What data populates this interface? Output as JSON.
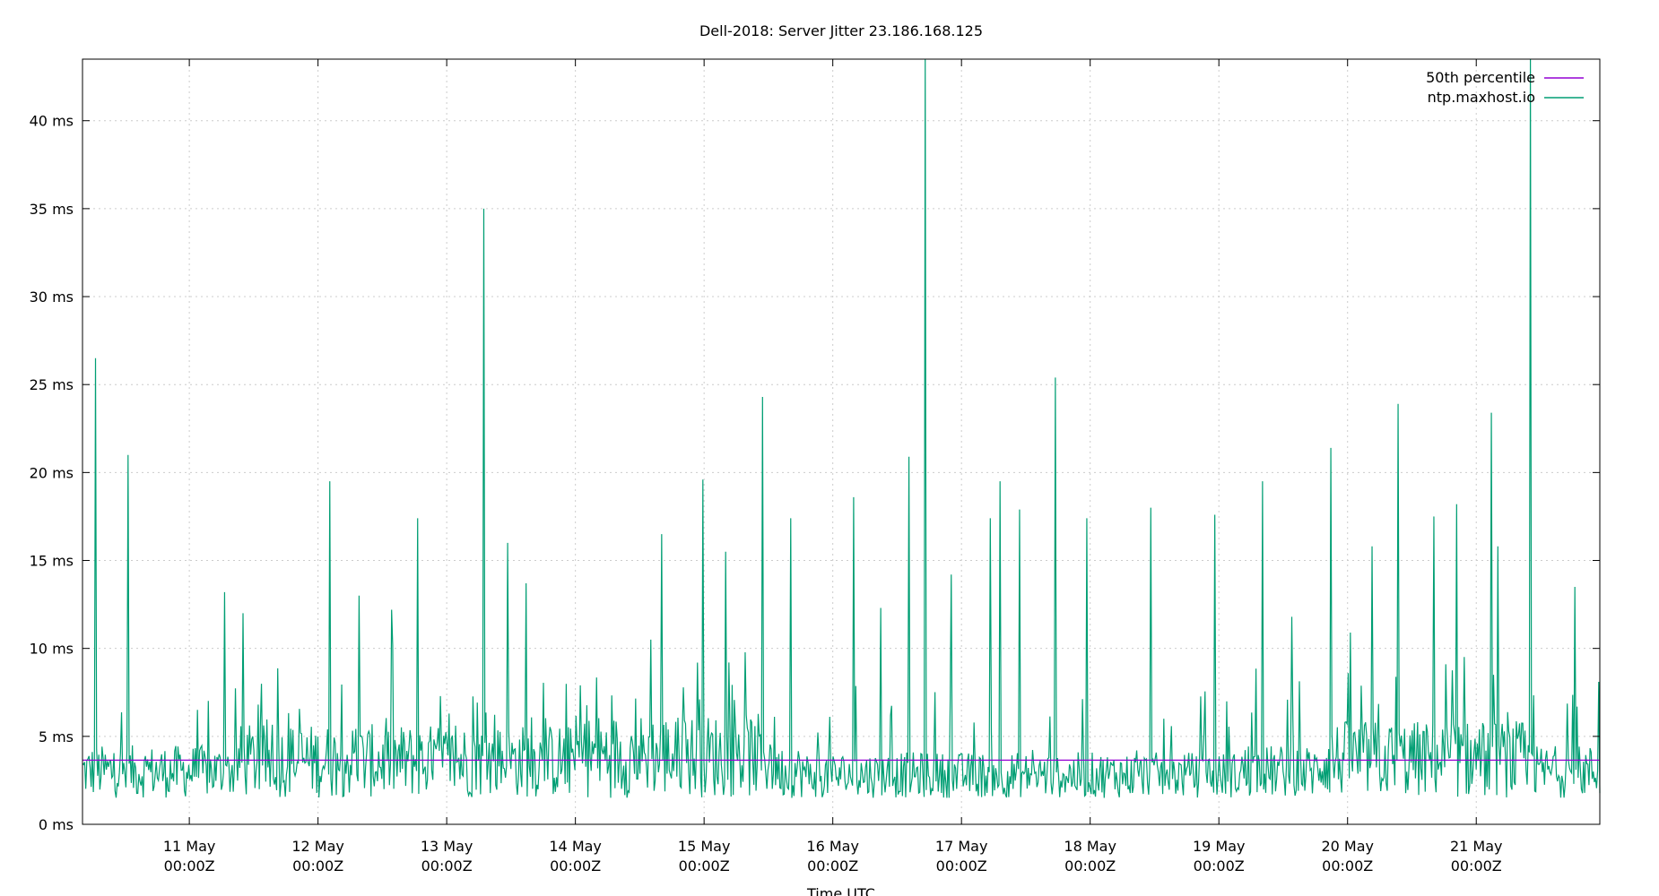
{
  "chart_data": {
    "type": "line",
    "title": "Dell-2018: Server Jitter 23.186.168.125",
    "xlabel": "Time UTC",
    "ylabel": "",
    "x_axis": {
      "range_days": [
        "2024-05-10T05:00:00Z",
        "2024-05-22T00:00:00Z"
      ],
      "ticks": [
        {
          "day": "11 May",
          "time": "00:00Z"
        },
        {
          "day": "12 May",
          "time": "00:00Z"
        },
        {
          "day": "13 May",
          "time": "00:00Z"
        },
        {
          "day": "14 May",
          "time": "00:00Z"
        },
        {
          "day": "15 May",
          "time": "00:00Z"
        },
        {
          "day": "16 May",
          "time": "00:00Z"
        },
        {
          "day": "17 May",
          "time": "00:00Z"
        },
        {
          "day": "18 May",
          "time": "00:00Z"
        },
        {
          "day": "19 May",
          "time": "00:00Z"
        },
        {
          "day": "20 May",
          "time": "00:00Z"
        },
        {
          "day": "21 May",
          "time": "00:00Z"
        }
      ]
    },
    "y_axis": {
      "unit": "ms",
      "ylim": [
        0,
        43.5
      ],
      "ticks": [
        "0 ms",
        "5 ms",
        "10 ms",
        "15 ms",
        "20 ms",
        "25 ms",
        "30 ms",
        "35 ms",
        "40 ms"
      ]
    },
    "grid": true,
    "legend_position": "top-right",
    "series": [
      {
        "name": "50th percentile",
        "color": "#9400d3",
        "constant_value": 3.65
      },
      {
        "name": "ntp.maxhost.io",
        "color": "#009e73",
        "baseline_ms": 3.5,
        "x_days_since_range_start": [
          0.1,
          0.35,
          1.1,
          1.25,
          1.92,
          2.15,
          2.4,
          2.6,
          3.12,
          3.3,
          3.45,
          4.42,
          4.5,
          4.82,
          5.0,
          5.28,
          5.5,
          5.5,
          5.99,
          6.2,
          6.42,
          6.55,
          6.75,
          7.05,
          7.13,
          7.28,
          7.56,
          7.8,
          8.3,
          8.8,
          9.17,
          9.4,
          9.7,
          9.85,
          10.02,
          10.22,
          10.5,
          10.68,
          10.95,
          11.0,
          11.25,
          11.6,
          11.78
        ],
        "spike_values_ms": [
          26.5,
          21.0,
          13.2,
          12.0,
          19.5,
          13.0,
          12.2,
          17.4,
          35.0,
          16.0,
          13.7,
          10.5,
          16.5,
          19.6,
          15.5,
          24.3,
          18.3,
          17.4,
          18.6,
          12.3,
          20.9,
          43.5,
          14.2,
          17.4,
          19.5,
          17.9,
          25.4,
          17.4,
          18.0,
          17.6,
          19.5,
          11.8,
          21.4,
          10.9,
          15.8,
          23.9,
          17.5,
          18.2,
          23.4,
          15.8,
          43.5,
          13.5,
          8.1
        ]
      }
    ]
  }
}
